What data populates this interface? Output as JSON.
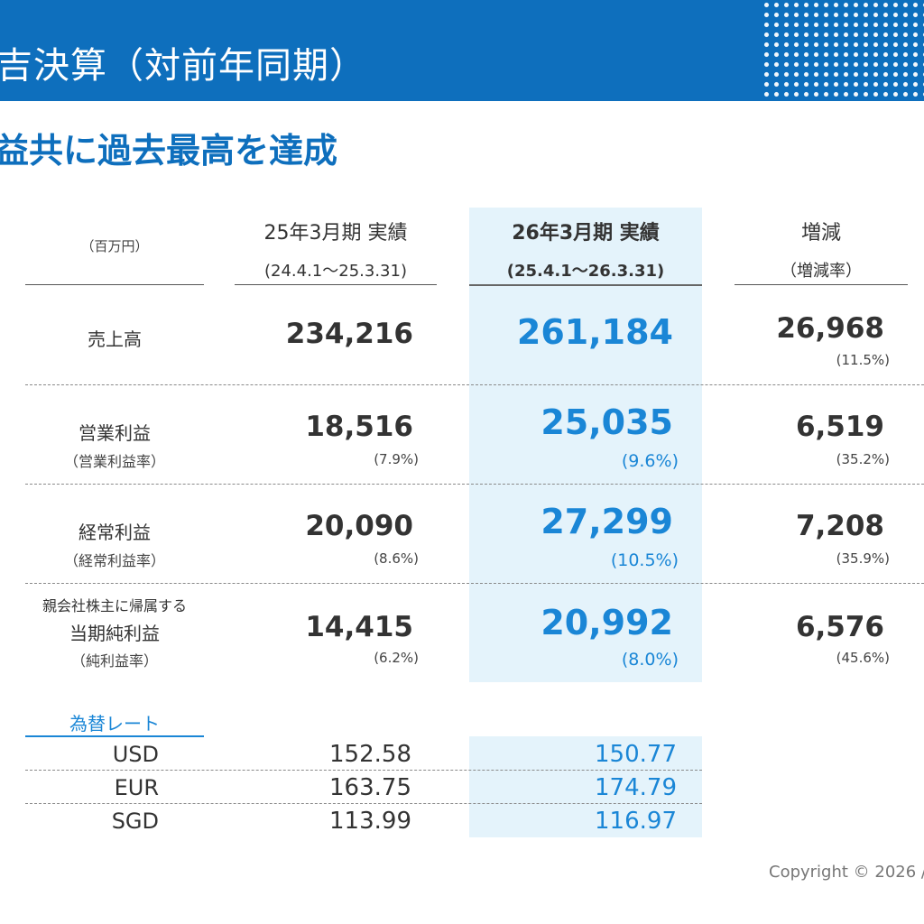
{
  "header": {
    "title": "吉決算（対前年同期）",
    "subtitle": "益共に過去最高を達成"
  },
  "table": {
    "unit": "（百万円）",
    "columns": [
      {
        "label": "25年3月期 実績",
        "period": "(24.4.1～25.3.31)"
      },
      {
        "label": "26年3月期 実績",
        "period": "(25.4.1～26.3.31)"
      },
      {
        "label": "増減",
        "period": "（増減率）"
      }
    ],
    "rows": [
      {
        "label": "売上高",
        "prev": "234,216",
        "curr": "261,184",
        "diff": "26,968",
        "diff_pct": "(11.5%)"
      },
      {
        "label": "営業利益",
        "sub": "（営業利益率）",
        "prev": "18,516",
        "prev_pct": "(7.9%)",
        "curr": "25,035",
        "curr_pct": "(9.6%)",
        "diff": "6,519",
        "diff_pct": "(35.2%)"
      },
      {
        "label": "経常利益",
        "sub": "（経常利益率）",
        "prev": "20,090",
        "prev_pct": "(8.6%)",
        "curr": "27,299",
        "curr_pct": "(10.5%)",
        "diff": "7,208",
        "diff_pct": "(35.9%)"
      },
      {
        "pre": "親会社株主に帰属する",
        "label": "当期純利益",
        "sub": "（純利益率）",
        "prev": "14,415",
        "prev_pct": "(6.2%)",
        "curr": "20,992",
        "curr_pct": "(8.0%)",
        "diff": "6,576",
        "diff_pct": "(45.6%)"
      }
    ]
  },
  "fx": {
    "title": "為替レート",
    "rows": [
      {
        "currency": "USD",
        "prev": "152.58",
        "curr": "150.77"
      },
      {
        "currency": "EUR",
        "prev": "163.75",
        "curr": "174.79"
      },
      {
        "currency": "SGD",
        "prev": "113.99",
        "curr": "116.97"
      }
    ]
  },
  "footer": {
    "copyright": "Copyright © 2026 /"
  },
  "colors": {
    "brand_blue": "#0e6fbd",
    "highlight_blue": "#1a86d6",
    "highlight_bg": "#e4f3fb"
  }
}
